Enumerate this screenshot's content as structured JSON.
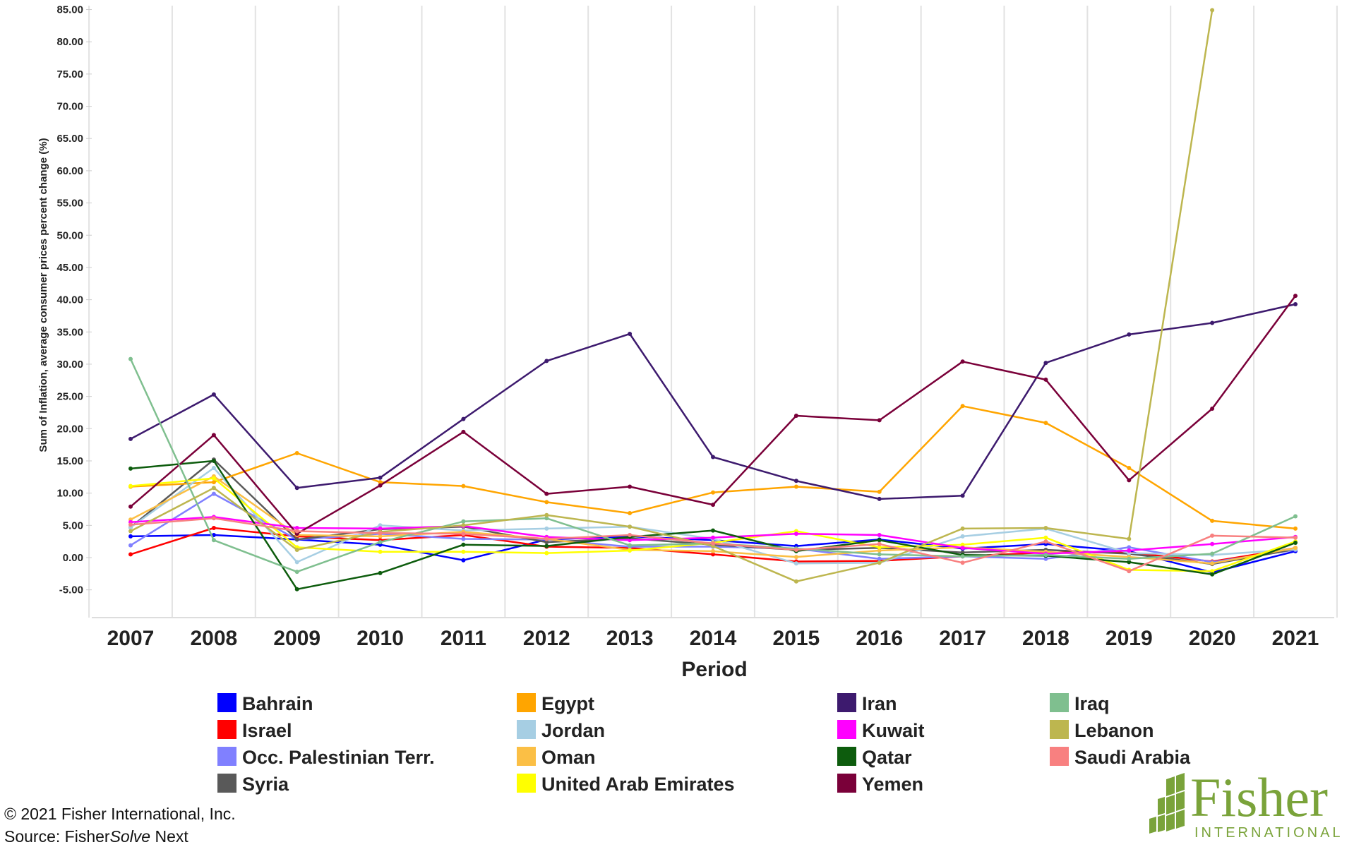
{
  "chart_data": {
    "type": "line",
    "xlabel": "Period",
    "ylabel": "Sum of Inflation, average consumer prices percent change (%)",
    "ylim": [
      -8,
      85
    ],
    "yticks": [
      -5,
      0,
      5,
      10,
      15,
      20,
      25,
      30,
      35,
      40,
      45,
      50,
      55,
      60,
      65,
      70,
      75,
      80,
      85
    ],
    "ytick_labels": [
      "-5.00",
      "0.00",
      "5.00",
      "10.00",
      "15.00",
      "20.00",
      "25.00",
      "30.00",
      "35.00",
      "40.00",
      "45.00",
      "50.00",
      "55.00",
      "60.00",
      "65.00",
      "70.00",
      "75.00",
      "80.00",
      "85.00"
    ],
    "grid": "vertical",
    "legend_position": "bottom",
    "categories": [
      "2007",
      "2008",
      "2009",
      "2010",
      "2011",
      "2012",
      "2013",
      "2014",
      "2015",
      "2016",
      "2017",
      "2018",
      "2019",
      "2020",
      "2021"
    ],
    "series": [
      {
        "name": "Bahrain",
        "color": "#0000ff",
        "values": [
          3.3,
          3.5,
          2.8,
          2.0,
          -0.4,
          2.8,
          3.3,
          2.7,
          1.8,
          2.8,
          1.4,
          2.1,
          1.0,
          -2.3,
          1.0
        ]
      },
      {
        "name": "Israel",
        "color": "#ff0000",
        "values": [
          0.5,
          4.6,
          3.3,
          2.7,
          3.5,
          1.7,
          1.5,
          0.5,
          -0.6,
          -0.5,
          0.2,
          0.8,
          0.8,
          -0.6,
          1.5
        ]
      },
      {
        "name": "Occ. Palestinian Terr.",
        "color": "#8080ff",
        "values": [
          1.9,
          9.9,
          2.8,
          3.7,
          2.9,
          2.8,
          1.7,
          1.7,
          1.4,
          -0.2,
          0.2,
          -0.2,
          1.6,
          -0.7,
          1.2
        ]
      },
      {
        "name": "Syria",
        "color": "#595959",
        "values": [
          4.7,
          15.2,
          2.8,
          4.4,
          4.8,
          2.4,
          3.0,
          2.0,
          1.2,
          1.5,
          0.8,
          1.2,
          0.6,
          -1.0,
          1.3
        ]
      },
      {
        "name": "Egypt",
        "color": "#ffa500",
        "values": [
          11.0,
          11.7,
          16.2,
          11.7,
          11.1,
          8.6,
          6.9,
          10.1,
          11.0,
          10.2,
          23.5,
          20.9,
          13.9,
          5.7,
          4.5
        ]
      },
      {
        "name": "Jordan",
        "color": "#a6cee3",
        "values": [
          4.7,
          13.9,
          -0.7,
          5.0,
          4.2,
          4.5,
          4.8,
          2.9,
          -0.9,
          -0.8,
          3.3,
          4.5,
          0.7,
          0.4,
          1.3
        ]
      },
      {
        "name": "Oman",
        "color": "#fbbf45",
        "values": [
          5.9,
          12.6,
          3.5,
          3.3,
          4.0,
          2.9,
          1.2,
          1.0,
          0.1,
          1.1,
          1.6,
          0.9,
          0.1,
          -0.9,
          1.5
        ]
      },
      {
        "name": "United Arab Emirates",
        "color": "#ffff00",
        "values": [
          11.1,
          12.3,
          1.6,
          0.9,
          0.9,
          0.7,
          1.1,
          2.3,
          4.1,
          1.6,
          2.0,
          3.1,
          -1.9,
          -2.1,
          2.5
        ]
      },
      {
        "name": "Iran",
        "color": "#3d1a6e",
        "values": [
          18.4,
          25.3,
          10.8,
          12.4,
          21.5,
          30.5,
          34.7,
          15.6,
          11.9,
          9.1,
          9.6,
          30.2,
          34.6,
          36.4,
          39.3
        ]
      },
      {
        "name": "Kuwait",
        "color": "#ff00ff",
        "values": [
          5.5,
          6.3,
          4.6,
          4.5,
          4.9,
          3.2,
          2.7,
          3.1,
          3.7,
          3.5,
          1.5,
          0.6,
          1.1,
          2.1,
          3.2
        ]
      },
      {
        "name": "Qatar",
        "color": "#0d5c0d",
        "values": [
          13.8,
          15.0,
          -4.9,
          -2.4,
          2.0,
          1.8,
          3.2,
          4.2,
          1.0,
          2.7,
          0.4,
          0.3,
          -0.7,
          -2.6,
          2.3
        ]
      },
      {
        "name": "Yemen",
        "color": "#7a0039",
        "values": [
          7.9,
          19.0,
          3.7,
          11.2,
          19.5,
          9.9,
          11.0,
          8.2,
          22.0,
          21.3,
          30.4,
          27.6,
          12.0,
          23.1,
          40.6
        ]
      },
      {
        "name": "Iraq",
        "color": "#7fbf8f",
        "values": [
          30.8,
          2.7,
          -2.2,
          2.4,
          5.6,
          6.1,
          1.9,
          2.2,
          1.4,
          0.5,
          0.2,
          0.4,
          -0.2,
          0.6,
          6.4
        ]
      },
      {
        "name": "Lebanon",
        "color": "#bdb64f",
        "values": [
          4.1,
          10.8,
          1.2,
          4.0,
          5.0,
          6.6,
          4.8,
          1.8,
          -3.7,
          -0.8,
          4.5,
          4.6,
          2.9,
          84.9,
          null
        ]
      },
      {
        "name": "Saudi Arabia",
        "color": "#f88080",
        "values": [
          5.1,
          6.1,
          4.1,
          3.8,
          3.7,
          2.9,
          3.5,
          2.2,
          1.2,
          2.1,
          -0.8,
          2.5,
          -2.1,
          3.4,
          3.1
        ]
      }
    ]
  },
  "footer": {
    "copyright": "© 2021 Fisher International, Inc.",
    "source_prefix": "Source: Fisher",
    "source_italic": "Solve",
    "source_suffix": " Next"
  },
  "logo": {
    "word": "Fisher",
    "sub": "INTERNATIONAL"
  }
}
